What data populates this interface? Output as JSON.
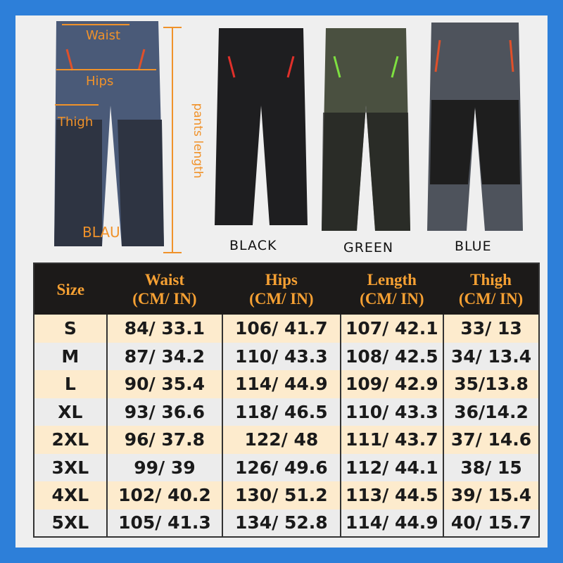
{
  "annotations": {
    "waist": "Waist",
    "hips": "Hips",
    "thigh": "Thigh",
    "pants_length": "pants length",
    "blau": "BLAU"
  },
  "colors_labels": [
    "BLACK",
    "GREEN",
    "BLUE"
  ],
  "colors": {
    "frame": "#2d7fd9",
    "accent": "#f0922a",
    "header_bg": "#1c1a19",
    "row_alt": "#fdebcd"
  },
  "table": {
    "headers": [
      {
        "l1": "Size",
        "l2": ""
      },
      {
        "l1": "Waist",
        "l2": "(CM/ IN)"
      },
      {
        "l1": "Hips",
        "l2": "(CM/ IN)"
      },
      {
        "l1": "Length",
        "l2": "(CM/ IN)"
      },
      {
        "l1": "Thigh",
        "l2": "(CM/ IN)"
      }
    ],
    "rows": [
      [
        "S",
        "84/ 33.1",
        "106/ 41.7",
        "107/ 42.1",
        "33/ 13"
      ],
      [
        "M",
        "87/ 34.2",
        "110/ 43.3",
        "108/ 42.5",
        "34/ 13.4"
      ],
      [
        "L",
        "90/ 35.4",
        "114/ 44.9",
        "109/ 42.9",
        "35/13.8"
      ],
      [
        "XL",
        "93/ 36.6",
        "118/ 46.5",
        "110/ 43.3",
        "36/14.2"
      ],
      [
        "2XL",
        "96/ 37.8",
        "122/ 48",
        "111/ 43.7",
        "37/ 14.6"
      ],
      [
        "3XL",
        "99/ 39",
        "126/ 49.6",
        "112/ 44.1",
        "38/ 15"
      ],
      [
        "4XL",
        "102/ 40.2",
        "130/ 51.2",
        "113/ 44.5",
        "39/ 15.4"
      ],
      [
        "5XL",
        "105/ 41.3",
        "134/ 52.8",
        "114/ 44.9",
        "40/ 15.7"
      ]
    ]
  }
}
